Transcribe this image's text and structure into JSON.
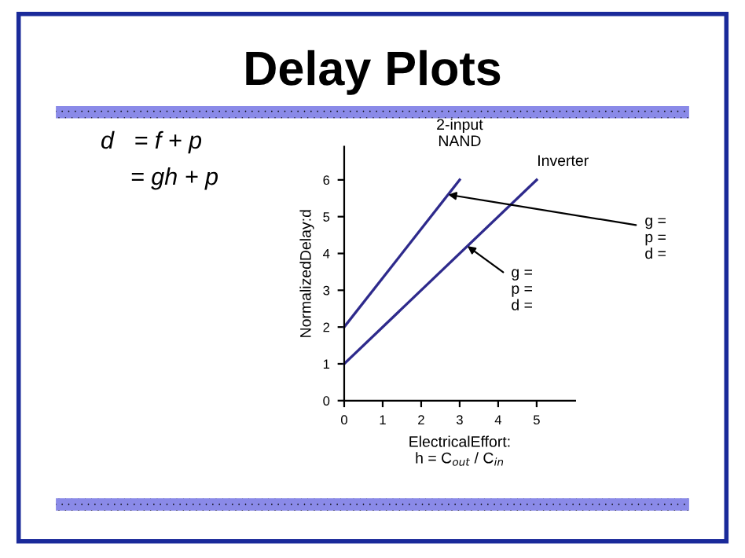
{
  "chart_data": {
    "type": "line",
    "title": "Delay Plots",
    "xlabel": "ElectricalEffort:\nh = C$_{out}$ / C$_{in}$",
    "ylabel": "NormalizedDelay:d",
    "series": [
      {
        "name": "2-input\nNAND",
        "color": "#2e2a8c",
        "x": [
          0,
          3
        ],
        "values": [
          2,
          6
        ]
      },
      {
        "name": "Inverter",
        "color": "#2e2a8c",
        "x": [
          0,
          5
        ],
        "values": [
          1,
          6
        ]
      }
    ],
    "annotations": [
      "d   = f + p",
      "= gh + p",
      {
        "text": "g =\np =\nd =",
        "x": 2.7,
        "y": 5.6
      },
      {
        "text": "g =\np =\nd =",
        "x": 3.2,
        "y": 4.2
      }
    ],
    "xlim": [
      0,
      6
    ],
    "ylim": [
      0,
      6.9
    ],
    "xticks": [
      0,
      1,
      2,
      3,
      4,
      5
    ],
    "yticks": [
      0,
      1,
      2,
      3,
      4,
      5,
      6
    ],
    "grid": false,
    "legend": false,
    "marker": "none",
    "line_style": "solid"
  }
}
